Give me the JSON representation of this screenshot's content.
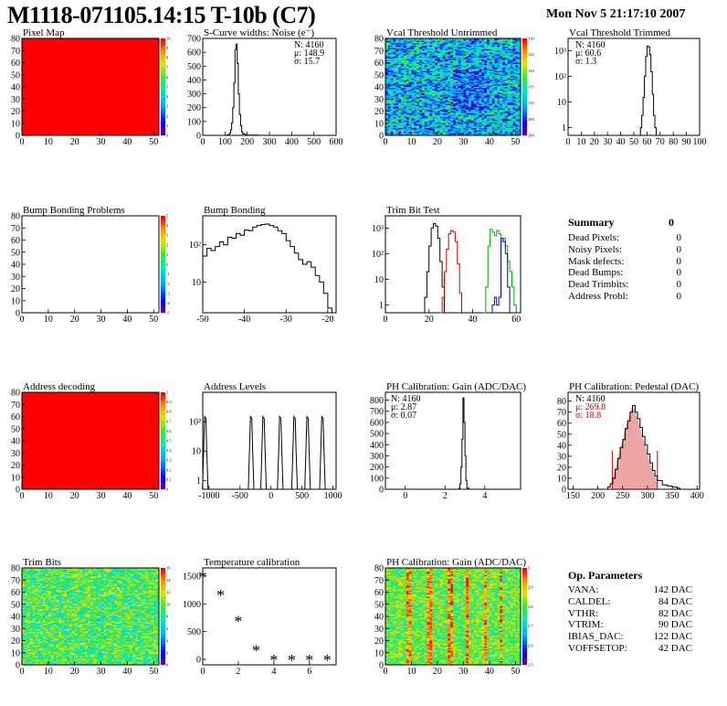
{
  "header": {
    "title": "M1118-071105.14:15 T-10b (C7)",
    "date": "Mon Nov  5 21:17:10 2007"
  },
  "summary": {
    "title": "Summary",
    "total": "0",
    "items": [
      {
        "label": "Dead Pixels:",
        "value": "0"
      },
      {
        "label": "Noisy Pixels:",
        "value": "0"
      },
      {
        "label": "Mask defects:",
        "value": "0"
      },
      {
        "label": "Dead Bumps:",
        "value": "0"
      },
      {
        "label": "Dead Trimbits:",
        "value": "0"
      },
      {
        "label": "Address Probl:",
        "value": "0"
      }
    ]
  },
  "op_parameters": {
    "title": "Op. Parameters",
    "items": [
      {
        "label": "VANA:",
        "value": "142 DAC"
      },
      {
        "label": "CALDEL:",
        "value": "84 DAC"
      },
      {
        "label": "VTHR:",
        "value": "82 DAC"
      },
      {
        "label": "VTRIM:",
        "value": "90 DAC"
      },
      {
        "label": "IBIAS_DAC:",
        "value": "122 DAC"
      },
      {
        "label": "VOFFSETOP:",
        "value": "42 DAC"
      }
    ]
  },
  "colors": {
    "red_map": "#ff0000",
    "trim_bit_series": [
      "#000000",
      "#cc0000",
      "#00aa00",
      "#0000cc"
    ],
    "pedestal_fill": "#cc0000"
  },
  "chart_data": [
    {
      "id": "pixel-map",
      "type": "heatmap",
      "title": "Pixel Map",
      "x_ticks": [
        "0",
        "10",
        "20",
        "30",
        "40",
        "50"
      ],
      "y_ticks": [
        "0",
        "10",
        "20",
        "30",
        "40",
        "50",
        "60",
        "70",
        "80"
      ],
      "xlim": [
        0,
        52
      ],
      "ylim": [
        0,
        80
      ],
      "fill": "uniform",
      "colorbar_ticks": [
        "0",
        "1",
        "2",
        "3",
        "4",
        "5",
        "6",
        "7",
        "8",
        "9",
        "10"
      ]
    },
    {
      "id": "scurve-noise",
      "type": "line",
      "title": "S-Curve widths: Noise (e⁻)",
      "x_ticks": [
        "0",
        "100",
        "200",
        "300",
        "400",
        "500",
        "600"
      ],
      "y_ticks": [
        "0",
        "100",
        "200",
        "300",
        "400",
        "500",
        "600",
        "700"
      ],
      "xlim": [
        0,
        600
      ],
      "ylim": [
        0,
        700
      ],
      "x": [
        100,
        110,
        120,
        125,
        130,
        135,
        140,
        145,
        150,
        155,
        160,
        165,
        170,
        175,
        180,
        190,
        200,
        220,
        250
      ],
      "values": [
        0,
        4,
        15,
        40,
        90,
        200,
        380,
        620,
        660,
        520,
        300,
        150,
        70,
        25,
        10,
        4,
        2,
        1,
        0
      ],
      "stats": [
        "N: 4160",
        "μ: 148.9",
        "σ: 15.7"
      ]
    },
    {
      "id": "vcal-untrimmed",
      "type": "heatmap",
      "title": "Vcal Threshold Untrimmed",
      "x_ticks": [
        "0",
        "10",
        "20",
        "30",
        "40",
        "50"
      ],
      "y_ticks": [
        "0",
        "10",
        "20",
        "30",
        "40",
        "50",
        "60",
        "70",
        "80"
      ],
      "xlim": [
        0,
        52
      ],
      "ylim": [
        0,
        80
      ],
      "fill": "noise",
      "colorbar_ticks": [
        "100",
        "105",
        "110",
        "115",
        "120",
        "125",
        "130"
      ]
    },
    {
      "id": "vcal-trimmed",
      "type": "line",
      "title": "Vcal Threshold Trimmed",
      "scale": "log",
      "x_ticks": [
        "0",
        "10",
        "20",
        "30",
        "40",
        "50",
        "60",
        "70",
        "80",
        "90",
        "100"
      ],
      "y_ticks": [
        "1",
        "10",
        "10²",
        "10³"
      ],
      "xlim": [
        0,
        100
      ],
      "ylim": [
        0.5,
        3000
      ],
      "x": [
        55,
        56,
        57,
        58,
        59,
        60,
        61,
        62,
        63,
        64,
        65,
        66,
        67
      ],
      "values": [
        1,
        3,
        15,
        100,
        600,
        1500,
        1400,
        700,
        150,
        20,
        3,
        1,
        0.5
      ],
      "stats": [
        "N: 4160",
        "μ: 60.6",
        "σ:  1.3"
      ]
    },
    {
      "id": "bump-problems",
      "type": "heatmap",
      "title": "Bump Bonding Problems",
      "x_ticks": [
        "0",
        "10",
        "20",
        "30",
        "40",
        "50"
      ],
      "y_ticks": [
        "0",
        "10",
        "20",
        "30",
        "40",
        "50",
        "60",
        "70",
        "80"
      ],
      "xlim": [
        0,
        52
      ],
      "ylim": [
        0,
        80
      ],
      "fill": "empty",
      "colorbar_ticks": [
        "-5",
        "-4",
        "-3",
        "-2",
        "-1",
        "0",
        "1",
        "2",
        "3",
        "4",
        "5"
      ]
    },
    {
      "id": "bump-bonding",
      "type": "line",
      "title": "Bump Bonding",
      "scale": "log",
      "x_ticks": [
        "-50",
        "-40",
        "-30",
        "-20"
      ],
      "y_ticks": [
        "10",
        "10²"
      ],
      "xlim": [
        -50,
        -18
      ],
      "ylim": [
        1.5,
        600
      ],
      "x": [
        -50,
        -49,
        -48,
        -47,
        -46,
        -45,
        -44,
        -43,
        -42,
        -41,
        -40,
        -39,
        -38,
        -37,
        -36,
        -35,
        -34,
        -33,
        -32,
        -31,
        -30,
        -29,
        -28,
        -27,
        -26,
        -25,
        -24,
        -23,
        -22,
        -21,
        -20,
        -19
      ],
      "values": [
        50,
        80,
        70,
        90,
        120,
        100,
        160,
        150,
        200,
        180,
        250,
        240,
        300,
        330,
        350,
        360,
        330,
        300,
        240,
        200,
        130,
        90,
        60,
        40,
        30,
        35,
        25,
        15,
        10,
        5,
        2,
        1.5
      ]
    },
    {
      "id": "trim-bit-test",
      "type": "line",
      "title": "Trim Bit Test",
      "scale": "log",
      "x_ticks": [
        "0",
        "20",
        "40",
        "60"
      ],
      "y_ticks": [
        "1",
        "10",
        "10²",
        "10³"
      ],
      "xlim": [
        0,
        62
      ],
      "ylim": [
        0.5,
        3000
      ],
      "series": [
        {
          "x": [
            17,
            18,
            19,
            20,
            21,
            22,
            23,
            24,
            25,
            26,
            27
          ],
          "values": [
            0.5,
            2,
            20,
            200,
            1000,
            1500,
            1200,
            400,
            50,
            5,
            0.5
          ]
        },
        {
          "x": [
            25,
            26,
            27,
            28,
            29,
            30,
            31,
            32,
            33,
            34,
            35
          ],
          "values": [
            0.5,
            2,
            20,
            150,
            600,
            800,
            700,
            300,
            40,
            3,
            0.5
          ]
        },
        {
          "x": [
            45,
            46,
            47,
            48,
            49,
            50,
            51,
            52,
            53,
            54,
            55,
            56,
            57,
            58,
            59,
            60
          ],
          "values": [
            0.5,
            5,
            200,
            900,
            700,
            500,
            800,
            600,
            300,
            400,
            200,
            50,
            20,
            5,
            1,
            0.5
          ]
        },
        {
          "x": [
            48,
            49,
            50,
            51,
            52,
            53,
            54,
            55,
            56,
            57
          ],
          "values": [
            0.5,
            1,
            2,
            1,
            2,
            400,
            300,
            100,
            5,
            0.5
          ]
        }
      ]
    },
    {
      "id": "address-decoding",
      "type": "heatmap",
      "title": "Address decoding",
      "x_ticks": [
        "0",
        "10",
        "20",
        "30",
        "40",
        "50"
      ],
      "y_ticks": [
        "0",
        "10",
        "20",
        "30",
        "40",
        "50",
        "60",
        "70",
        "80"
      ],
      "xlim": [
        0,
        52
      ],
      "ylim": [
        0,
        80
      ],
      "fill": "uniform",
      "colorbar_ticks": [
        "0",
        "0.1",
        "0.2",
        "0.3",
        "0.4",
        "0.5",
        "0.6",
        "0.7",
        "0.8",
        "0.9",
        "1"
      ]
    },
    {
      "id": "address-levels",
      "type": "line",
      "title": "Address Levels",
      "scale": "log",
      "x_ticks": [
        "-1000",
        "-500",
        "0",
        "500",
        "1000"
      ],
      "y_ticks": [
        "1",
        "10",
        "10²"
      ],
      "xlim": [
        -1100,
        1050
      ],
      "ylim": [
        0.5,
        1000
      ],
      "peaks": [
        -1060,
        -320,
        -120,
        150,
        380,
        590,
        830
      ]
    },
    {
      "id": "ph-gain",
      "type": "line",
      "title": "PH Calibration: Gain (ADC/DAC)",
      "x_ticks": [
        "0",
        "2",
        "4"
      ],
      "y_ticks": [
        "0",
        "100",
        "200",
        "300",
        "400",
        "500",
        "600",
        "700",
        "800"
      ],
      "xlim": [
        -1,
        5.8
      ],
      "ylim": [
        0,
        870
      ],
      "x": [
        2.6,
        2.7,
        2.75,
        2.8,
        2.85,
        2.9,
        2.95,
        3.0,
        3.05,
        3.1,
        3.2
      ],
      "values": [
        0,
        10,
        50,
        200,
        450,
        820,
        600,
        300,
        80,
        10,
        0
      ],
      "stats": [
        "N: 4160",
        "μ: 2.87",
        "σ: 0.07"
      ]
    },
    {
      "id": "ph-pedestal",
      "type": "line",
      "title": "PH Calibration: Pedestal (DAC)",
      "x_ticks": [
        "150",
        "200",
        "250",
        "300",
        "350",
        "400"
      ],
      "y_ticks": [
        "0",
        "10",
        "20",
        "30",
        "40",
        "50",
        "60",
        "70",
        "80"
      ],
      "xlim": [
        140,
        405
      ],
      "ylim": [
        0,
        88
      ],
      "x": [
        220,
        225,
        230,
        235,
        240,
        245,
        250,
        255,
        260,
        265,
        270,
        275,
        280,
        285,
        290,
        295,
        300,
        305,
        310,
        315,
        320,
        330,
        340,
        350,
        360,
        365
      ],
      "values": [
        2,
        5,
        10,
        18,
        28,
        38,
        45,
        55,
        62,
        70,
        76,
        70,
        64,
        56,
        48,
        40,
        32,
        24,
        17,
        12,
        8,
        4,
        3,
        2,
        1,
        0
      ],
      "fit_range": [
        229,
        320
      ],
      "stats": [
        "N: 4160",
        "μ: 269.8",
        "σ: 18.8"
      ]
    },
    {
      "id": "trim-bits",
      "type": "heatmap",
      "title": "Trim Bits",
      "x_ticks": [
        "0",
        "10",
        "20",
        "30",
        "40",
        "50"
      ],
      "y_ticks": [
        "0",
        "10",
        "20",
        "30",
        "40",
        "50",
        "60",
        "70",
        "80"
      ],
      "xlim": [
        0,
        52
      ],
      "ylim": [
        0,
        80
      ],
      "fill": "noise-green",
      "colorbar_ticks": [
        "0",
        "2",
        "4",
        "6",
        "8",
        "10",
        "12",
        "14",
        "16"
      ]
    },
    {
      "id": "temperature-calibration",
      "type": "scatter",
      "title": "Temperature calibration",
      "x_ticks": [
        "0",
        "2",
        "4",
        "6"
      ],
      "y_ticks": [
        "0",
        "500",
        "1000",
        "1500"
      ],
      "xlim": [
        0,
        7.5
      ],
      "ylim": [
        -100,
        1650
      ],
      "x": [
        0,
        1,
        2,
        3,
        4,
        5,
        6,
        7
      ],
      "values": [
        1500,
        1170,
        700,
        170,
        0,
        0,
        0,
        0
      ]
    },
    {
      "id": "ph-gain-map",
      "type": "heatmap",
      "title": "PH Calibration: Gain (ADC/DAC)",
      "x_ticks": [
        "0",
        "10",
        "20",
        "30",
        "40",
        "50"
      ],
      "y_ticks": [
        "0",
        "10",
        "20",
        "30",
        "40",
        "50",
        "60",
        "70",
        "80"
      ],
      "xlim": [
        0,
        52
      ],
      "ylim": [
        0,
        80
      ],
      "fill": "stripes",
      "colorbar_ticks": [
        "2.5",
        "2.6",
        "2.7",
        "2.8",
        "2.9",
        "3"
      ]
    }
  ]
}
